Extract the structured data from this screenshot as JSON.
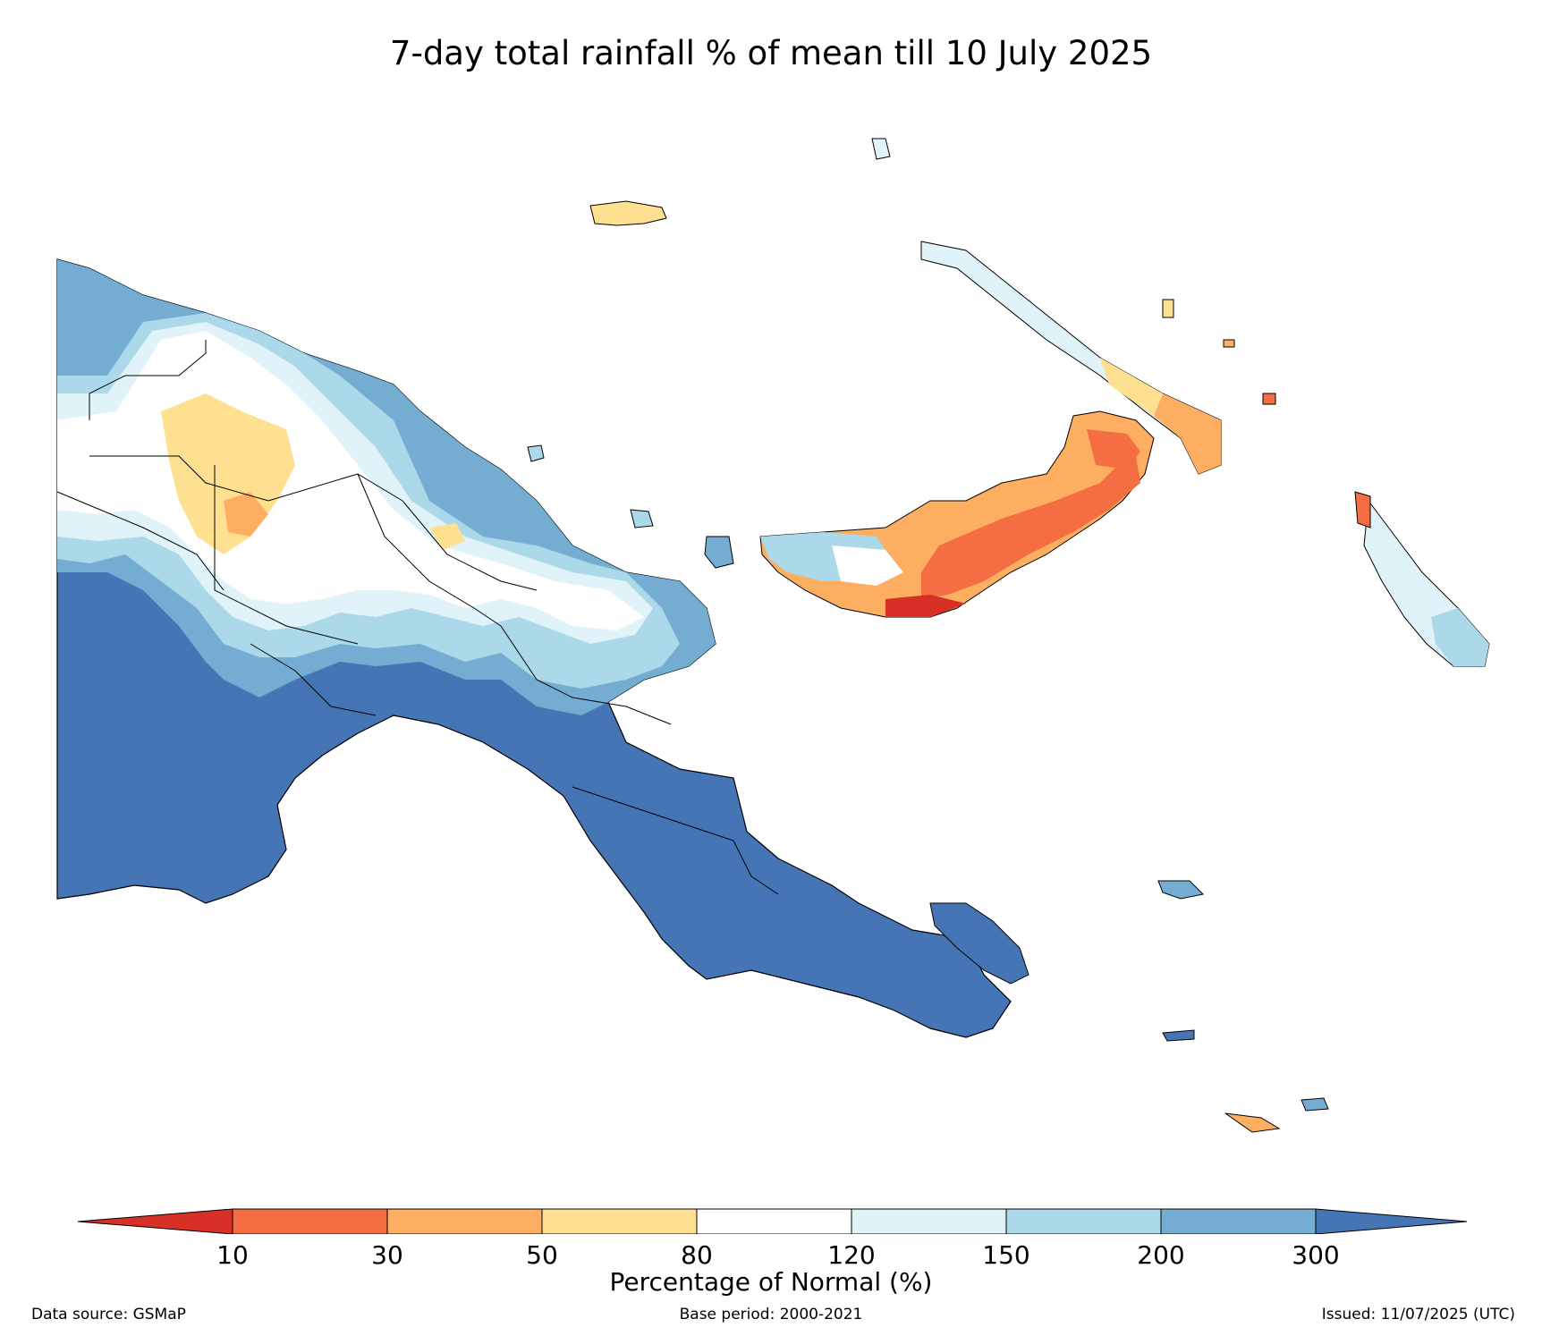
{
  "title": "7-day total rainfall % of mean till 10 July 2025",
  "legend": {
    "label": "Percentage of Normal (%)",
    "ticks": [
      "10",
      "30",
      "50",
      "80",
      "120",
      "150",
      "200",
      "300"
    ],
    "under_color": "#d73027",
    "over_color": "#4575b4",
    "bins": [
      {
        "range": "10-30",
        "color": "#f46d43"
      },
      {
        "range": "30-50",
        "color": "#fdae61"
      },
      {
        "range": "50-80",
        "color": "#fee090"
      },
      {
        "range": "80-120",
        "color": "#ffffff"
      },
      {
        "range": "120-150",
        "color": "#e0f3f8"
      },
      {
        "range": "150-200",
        "color": "#abd9e9"
      },
      {
        "range": "200-300",
        "color": "#74add1"
      }
    ]
  },
  "footer": {
    "source": "Data source: GSMaP",
    "base_period": "Base period: 2000-2021",
    "issued": "Issued: 11/07/2025 (UTC)"
  }
}
